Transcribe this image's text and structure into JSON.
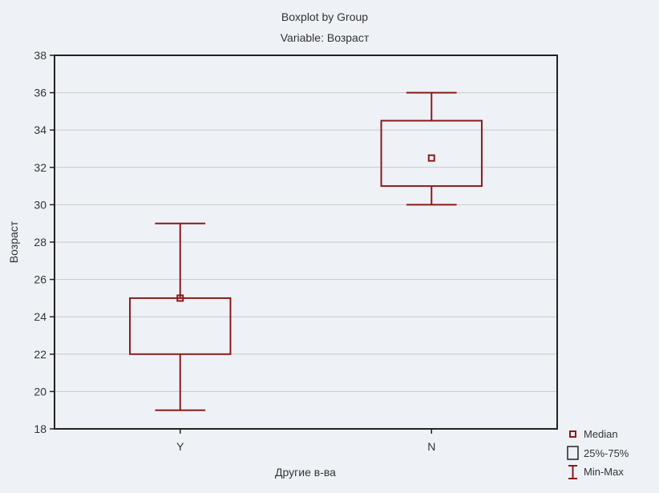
{
  "chart_data": {
    "type": "boxplot",
    "title": "Boxplot by Group",
    "subtitle": "Variable: Возраст",
    "xlabel": "Другие в-ва",
    "ylabel": "Возраст",
    "ylim": [
      18,
      38
    ],
    "yticks": [
      18,
      20,
      22,
      24,
      26,
      28,
      30,
      32,
      34,
      36,
      38
    ],
    "grid": true,
    "legend_position": "bottom-right",
    "categories": [
      "Y",
      "N"
    ],
    "boxes": [
      {
        "category": "Y",
        "min": 19,
        "q1": 22,
        "median": 25,
        "q3": 25,
        "max": 29
      },
      {
        "category": "N",
        "min": 30,
        "q1": 31,
        "median": 32.5,
        "q3": 34.5,
        "max": 36
      }
    ],
    "legend": [
      "Median",
      "25%-75%",
      "Min-Max"
    ],
    "colors": {
      "box": "#8b1a1a",
      "grid": "#c8c8c8",
      "axis": "#222222",
      "background": "#eef2f7"
    }
  }
}
